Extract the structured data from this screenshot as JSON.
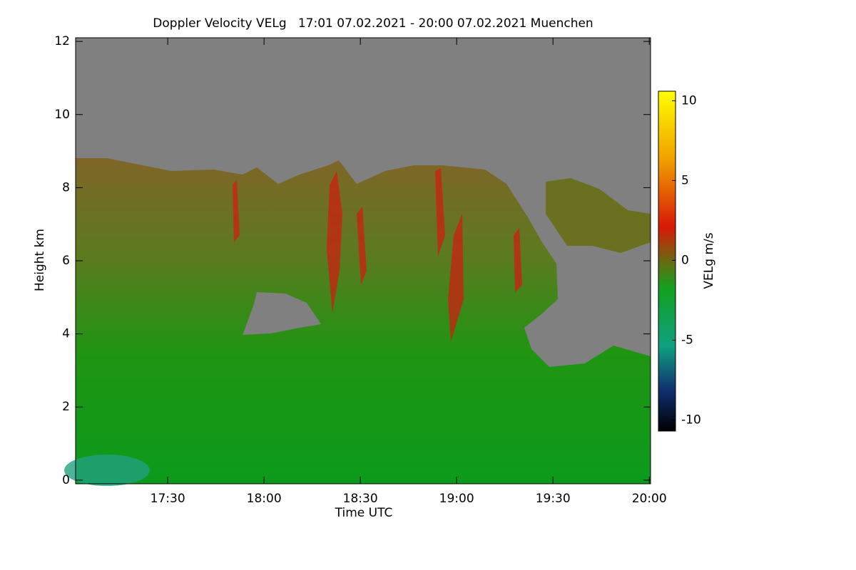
{
  "chart_data": {
    "type": "heatmap",
    "title": "Doppler Velocity VELg   17:01 07.02.2021 - 20:00 07.02.2021 Muenchen",
    "x_label": "Time UTC",
    "y_label": "Height km",
    "xlim": [
      1021.3,
      1200.4
    ],
    "xticks": [
      {
        "value": 1050,
        "label": "17:30"
      },
      {
        "value": 1080,
        "label": "18:00"
      },
      {
        "value": 1110,
        "label": "18:30"
      },
      {
        "value": 1140,
        "label": "19:00"
      },
      {
        "value": 1170,
        "label": "19:30"
      },
      {
        "value": 1200,
        "label": "20:00"
      }
    ],
    "ylim": [
      -0.1,
      12.1
    ],
    "yticks": [
      0,
      2,
      4,
      6,
      8,
      10,
      12
    ],
    "colorbar": {
      "label": "VELg m/s",
      "lim": [
        -10.7,
        10.6
      ],
      "ticks": [
        -10,
        -5,
        0,
        5,
        10
      ]
    }
  }
}
